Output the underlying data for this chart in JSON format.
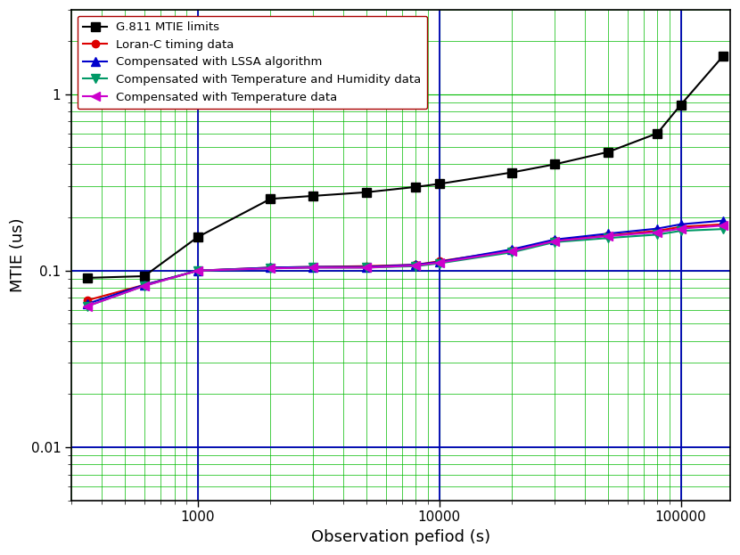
{
  "title": "",
  "xlabel": "Observation pefiod (s)",
  "ylabel": "MTIE (us)",
  "xlim": [
    300,
    160000
  ],
  "ylim": [
    0.005,
    3
  ],
  "background_color": "#ffffff",
  "grid_major_color": "#0000bb",
  "grid_minor_color": "#00bb00",
  "blue_hlines": [
    0.1,
    0.01
  ],
  "blue_vlines": [
    1000,
    10000,
    100000
  ],
  "xticks": [
    1000,
    10000,
    100000
  ],
  "xticklabels": [
    "1000",
    "10000",
    "100000"
  ],
  "yticks": [
    0.01,
    0.1,
    1
  ],
  "yticklabels": [
    "0.01",
    "0.1",
    "1"
  ],
  "series": [
    {
      "label": "G.811 MTIE limits",
      "color": "#000000",
      "marker": "s",
      "markersize": 7,
      "linewidth": 1.5,
      "x": [
        350,
        600,
        1000,
        2000,
        3000,
        5000,
        8000,
        10000,
        20000,
        30000,
        50000,
        80000,
        100000,
        150000
      ],
      "y": [
        0.091,
        0.093,
        0.155,
        0.255,
        0.265,
        0.278,
        0.298,
        0.31,
        0.36,
        0.4,
        0.47,
        0.6,
        0.87,
        1.65
      ]
    },
    {
      "label": "Loran-C timing data",
      "color": "#dd0000",
      "marker": "o",
      "markersize": 6,
      "linewidth": 1.5,
      "x": [
        350,
        600,
        1000,
        2000,
        3000,
        5000,
        8000,
        10000,
        20000,
        30000,
        50000,
        80000,
        100000,
        150000
      ],
      "y": [
        0.068,
        0.083,
        0.1,
        0.104,
        0.105,
        0.106,
        0.108,
        0.113,
        0.13,
        0.148,
        0.158,
        0.168,
        0.177,
        0.183
      ]
    },
    {
      "label": "Compensated with LSSA algorithm",
      "color": "#0000cc",
      "marker": "^",
      "markersize": 7,
      "linewidth": 1.5,
      "x": [
        350,
        600,
        1000,
        2000,
        3000,
        5000,
        8000,
        10000,
        20000,
        30000,
        50000,
        80000,
        100000,
        150000
      ],
      "y": [
        0.065,
        0.083,
        0.1,
        0.104,
        0.105,
        0.105,
        0.108,
        0.112,
        0.132,
        0.15,
        0.162,
        0.173,
        0.183,
        0.192
      ]
    },
    {
      "label": "Compensated with Temperature and Humidity data",
      "color": "#009966",
      "marker": "v",
      "markersize": 7,
      "linewidth": 1.5,
      "x": [
        350,
        600,
        1000,
        2000,
        3000,
        5000,
        8000,
        10000,
        20000,
        30000,
        50000,
        80000,
        100000,
        150000
      ],
      "y": [
        0.063,
        0.082,
        0.1,
        0.103,
        0.104,
        0.104,
        0.106,
        0.11,
        0.127,
        0.145,
        0.153,
        0.16,
        0.168,
        0.172
      ]
    },
    {
      "label": "Compensated with Temperature data",
      "color": "#cc00cc",
      "marker": "<",
      "markersize": 7,
      "linewidth": 1.5,
      "x": [
        350,
        600,
        1000,
        2000,
        3000,
        5000,
        8000,
        10000,
        20000,
        30000,
        50000,
        80000,
        100000,
        150000
      ],
      "y": [
        0.063,
        0.082,
        0.1,
        0.103,
        0.104,
        0.104,
        0.107,
        0.111,
        0.129,
        0.147,
        0.157,
        0.165,
        0.173,
        0.18
      ]
    }
  ]
}
